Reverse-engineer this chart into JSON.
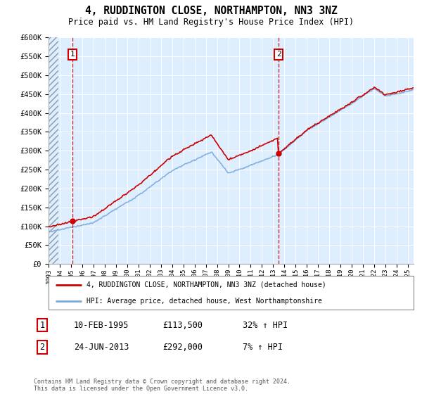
{
  "title": "4, RUDDINGTON CLOSE, NORTHAMPTON, NN3 3NZ",
  "subtitle": "Price paid vs. HM Land Registry's House Price Index (HPI)",
  "ylim": [
    0,
    600000
  ],
  "yticks": [
    0,
    50000,
    100000,
    150000,
    200000,
    250000,
    300000,
    350000,
    400000,
    450000,
    500000,
    550000,
    600000
  ],
  "transaction1_year": 1995.11,
  "transaction1_price": 113500,
  "transaction2_year": 2013.48,
  "transaction2_price": 292000,
  "legend_line1": "4, RUDDINGTON CLOSE, NORTHAMPTON, NN3 3NZ (detached house)",
  "legend_line2": "HPI: Average price, detached house, West Northamptonshire",
  "note1_date": "10-FEB-1995",
  "note1_price": "£113,500",
  "note1_hpi": "32% ↑ HPI",
  "note2_date": "24-JUN-2013",
  "note2_price": "£292,000",
  "note2_hpi": "7% ↑ HPI",
  "footer": "Contains HM Land Registry data © Crown copyright and database right 2024.\nThis data is licensed under the Open Government Licence v3.0.",
  "red_color": "#cc0000",
  "blue_color": "#7aaadd",
  "bg_color": "#ddeeff",
  "xmin": 1993.0,
  "xmax": 2025.5
}
